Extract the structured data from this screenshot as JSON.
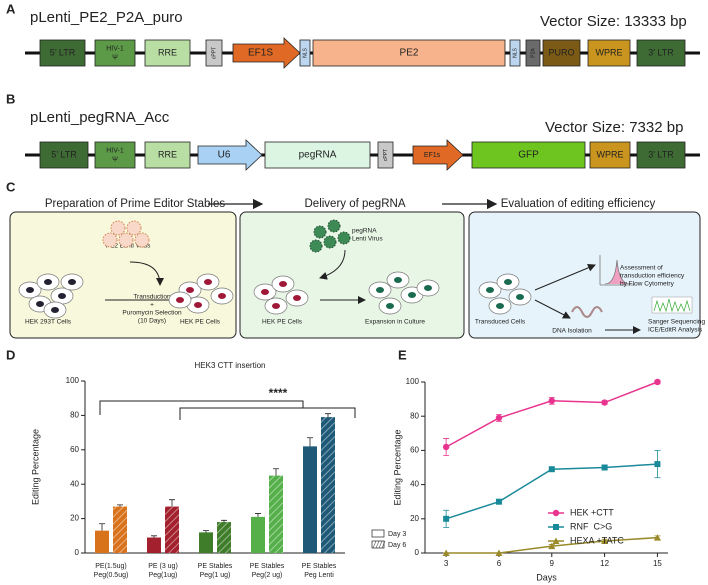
{
  "panel_labels": [
    "A",
    "B",
    "C",
    "D",
    "E"
  ],
  "vectors": [
    {
      "title": "pLenti_PE2_P2A_puro",
      "size": "Vector Size: 13333 bp",
      "elements": [
        [
          "5’ LTR"
        ],
        [
          "HIV-1",
          "Ψ"
        ],
        [
          "RRE"
        ],
        [
          "cPPT"
        ],
        [
          "EF1S"
        ],
        [
          "NLS"
        ],
        [
          "PE2"
        ],
        [
          "NLS"
        ],
        [
          "P2A"
        ],
        [
          "PURO"
        ],
        [
          "WPRE"
        ],
        [
          "3’ LTR"
        ]
      ]
    },
    {
      "title": "pLenti_pegRNA_Acc",
      "size": "Vector Size: 7332 bp",
      "elements": [
        [
          "5’ LTR"
        ],
        [
          "HIV-1",
          "Ψ"
        ],
        [
          "RRE"
        ],
        [
          "U6"
        ],
        [
          "pegRNA"
        ],
        [
          "cPPT"
        ],
        [
          "EF1s"
        ],
        [
          "GFP"
        ],
        [
          "WPRE"
        ],
        [
          "3’ LTR"
        ]
      ]
    }
  ],
  "workflow": {
    "steps": [
      "Preparation of Prime Editor Stables",
      "Delivery of pegRNA",
      "Evaluation of editing efficiency"
    ],
    "labels": [
      [
        "PE2 Lenti Virus"
      ],
      [
        "Transduction",
        "+",
        "Puromycin Selection",
        "(10 Days)"
      ],
      [
        "HEK 293T Cells"
      ],
      [
        "HEK PE Cells"
      ],
      [
        "pegRNA",
        "Lenti Virus"
      ],
      [
        "HEK PE Cells"
      ],
      [
        "Expansion in Culture"
      ],
      [
        "Transduced Cells"
      ],
      [
        "Assessment of",
        "transduction efficiency",
        "by Flow Cytometry"
      ],
      [
        "DNA Isolation"
      ],
      [
        "Sanger Sequencing",
        "ICE/EditR Analysis"
      ]
    ]
  },
  "chart_data": [
    {
      "type": "bar",
      "title": "HEK3 CTT insertion",
      "y_label": "Editing Percentage",
      "categories": [
        [
          "PE(1.5ug)",
          "Peg(0.5ug)"
        ],
        [
          "PE (3 ug)",
          "Peg(1ug)"
        ],
        [
          "PE Stables",
          "Peg(1 ug)"
        ],
        [
          "PE Stables",
          "Peg(2 ug)"
        ],
        [
          "PE Stables",
          "Peg Lenti"
        ]
      ],
      "category_colors": [
        "#d8731c",
        "#a3202e",
        "#3f7d2b",
        "#55b04a",
        "#1e5a78"
      ],
      "series": [
        {
          "name": "Day 3",
          "values": [
            13,
            9,
            12,
            21,
            62
          ],
          "errors": [
            4,
            1,
            1,
            2,
            5
          ]
        },
        {
          "name": "Day 6",
          "values": [
            27,
            27,
            18,
            45,
            79
          ],
          "errors": [
            1,
            4,
            1,
            4,
            2
          ],
          "hatch": true
        }
      ],
      "ylim": [
        0,
        100
      ],
      "yticks": [
        0,
        20,
        40,
        60,
        80,
        100
      ],
      "annotation": "****"
    },
    {
      "type": "line",
      "x_label": "Days",
      "y_label": "Editing Percentage",
      "x": [
        3,
        6,
        9,
        12,
        15
      ],
      "xlim": [
        1.8,
        15.6
      ],
      "xticks": [
        3,
        6,
        9,
        12,
        15
      ],
      "ylim": [
        0,
        100
      ],
      "yticks": [
        0,
        20,
        40,
        60,
        80,
        100
      ],
      "series": [
        {
          "name": "HEK +CTT",
          "color": "#e8348f",
          "marker": "circle",
          "values": [
            62,
            79,
            89,
            88,
            100
          ],
          "errors": [
            5,
            2,
            2,
            1,
            1
          ]
        },
        {
          "name": "RNF  C>G",
          "color": "#1a8a9a",
          "marker": "square",
          "values": [
            20,
            30,
            49,
            50,
            52
          ],
          "errors": [
            5,
            1,
            1,
            1,
            8
          ]
        },
        {
          "name": "HEXA +TATC",
          "color": "#9a8a2a",
          "marker": "triangle",
          "values": [
            0,
            0,
            4,
            7,
            9
          ],
          "errors": [
            0,
            0,
            1,
            1,
            1
          ]
        }
      ]
    }
  ]
}
